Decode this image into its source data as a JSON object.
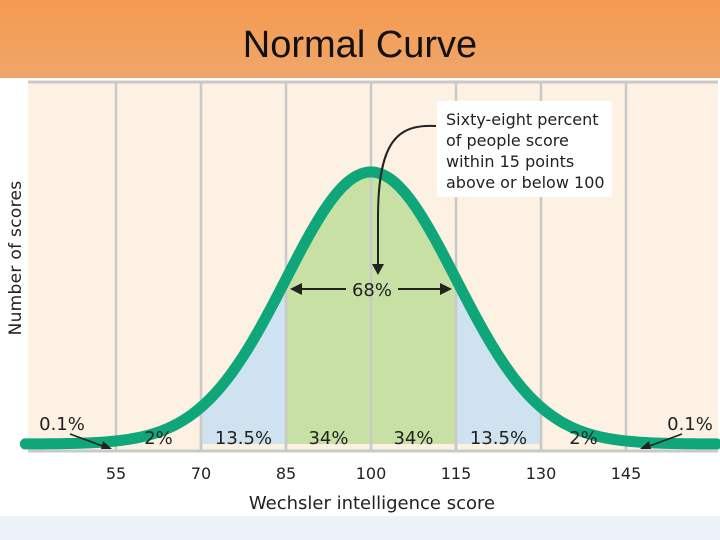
{
  "title": "Normal Curve",
  "colors": {
    "header": "#f59a4f",
    "plot_background": "#fcf1e3",
    "curve": "#0fa67a",
    "center_fill": "#c7e0a4",
    "side_fill": "#cfe2f0",
    "grid": "#c9c9c9"
  },
  "chart_data": {
    "type": "area",
    "distribution": "normal",
    "mean": 100,
    "sd": 15,
    "xlabel": "Wechsler intelligence score",
    "ylabel": "Number of scores",
    "xticks": [
      55,
      70,
      85,
      100,
      115,
      130,
      145
    ],
    "xlim": [
      40,
      160
    ],
    "grid": true,
    "regions": [
      {
        "from": 40,
        "to": 55,
        "label": "0.1%",
        "shaded": false
      },
      {
        "from": 55,
        "to": 70,
        "label": "2%",
        "shaded": false
      },
      {
        "from": 70,
        "to": 85,
        "label": "13.5%",
        "shaded": true,
        "color": "side"
      },
      {
        "from": 85,
        "to": 100,
        "label": "34%",
        "shaded": true,
        "color": "center"
      },
      {
        "from": 100,
        "to": 115,
        "label": "34%",
        "shaded": true,
        "color": "center"
      },
      {
        "from": 115,
        "to": 130,
        "label": "13.5%",
        "shaded": true,
        "color": "side"
      },
      {
        "from": 130,
        "to": 145,
        "label": "2%",
        "shaded": false
      },
      {
        "from": 145,
        "to": 160,
        "label": "0.1%",
        "shaded": false
      }
    ],
    "range_annotation": {
      "from": 85,
      "to": 115,
      "label": "68%"
    },
    "callout": [
      "Sixty-eight percent",
      "of people score",
      "within 15 points",
      "above or below 100"
    ]
  }
}
